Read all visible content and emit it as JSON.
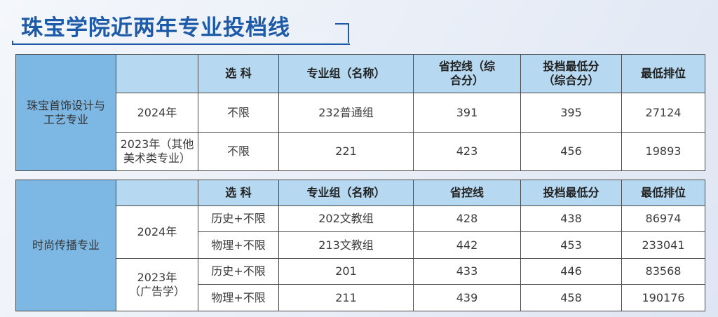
{
  "title": "珠宝学院近两年专业投档线",
  "colors": {
    "title": "#1d5aa8",
    "label_col": "#7db7e3",
    "header": "#b6d8f0"
  },
  "table1": {
    "major": "珠宝首饰设计与工艺专业",
    "headers": [
      "",
      "选 科",
      "专业组（名称）",
      "省控线（综合分）",
      "投档最低分（综合分）",
      "最低排位"
    ],
    "rows": [
      [
        "2024年",
        "不限",
        "232普通组",
        "391",
        "395",
        "27124"
      ],
      [
        "2023年（其他美术类专业）",
        "不限",
        "221",
        "423",
        "456",
        "19893"
      ]
    ]
  },
  "table2": {
    "major": "时尚传播专业",
    "headers": [
      "",
      "选 科",
      "专业组（名称）",
      "省控线",
      "投档最低分",
      "最低排位"
    ],
    "years": [
      "2024年",
      "2023年（广告学）"
    ],
    "rows": [
      [
        "历史+不限",
        "202文教组",
        "428",
        "438",
        "86974"
      ],
      [
        "物理+不限",
        "213文教组",
        "442",
        "453",
        "233041"
      ],
      [
        "历史+不限",
        "201",
        "433",
        "446",
        "83568"
      ],
      [
        "物理+不限",
        "211",
        "439",
        "458",
        "190176"
      ]
    ]
  }
}
